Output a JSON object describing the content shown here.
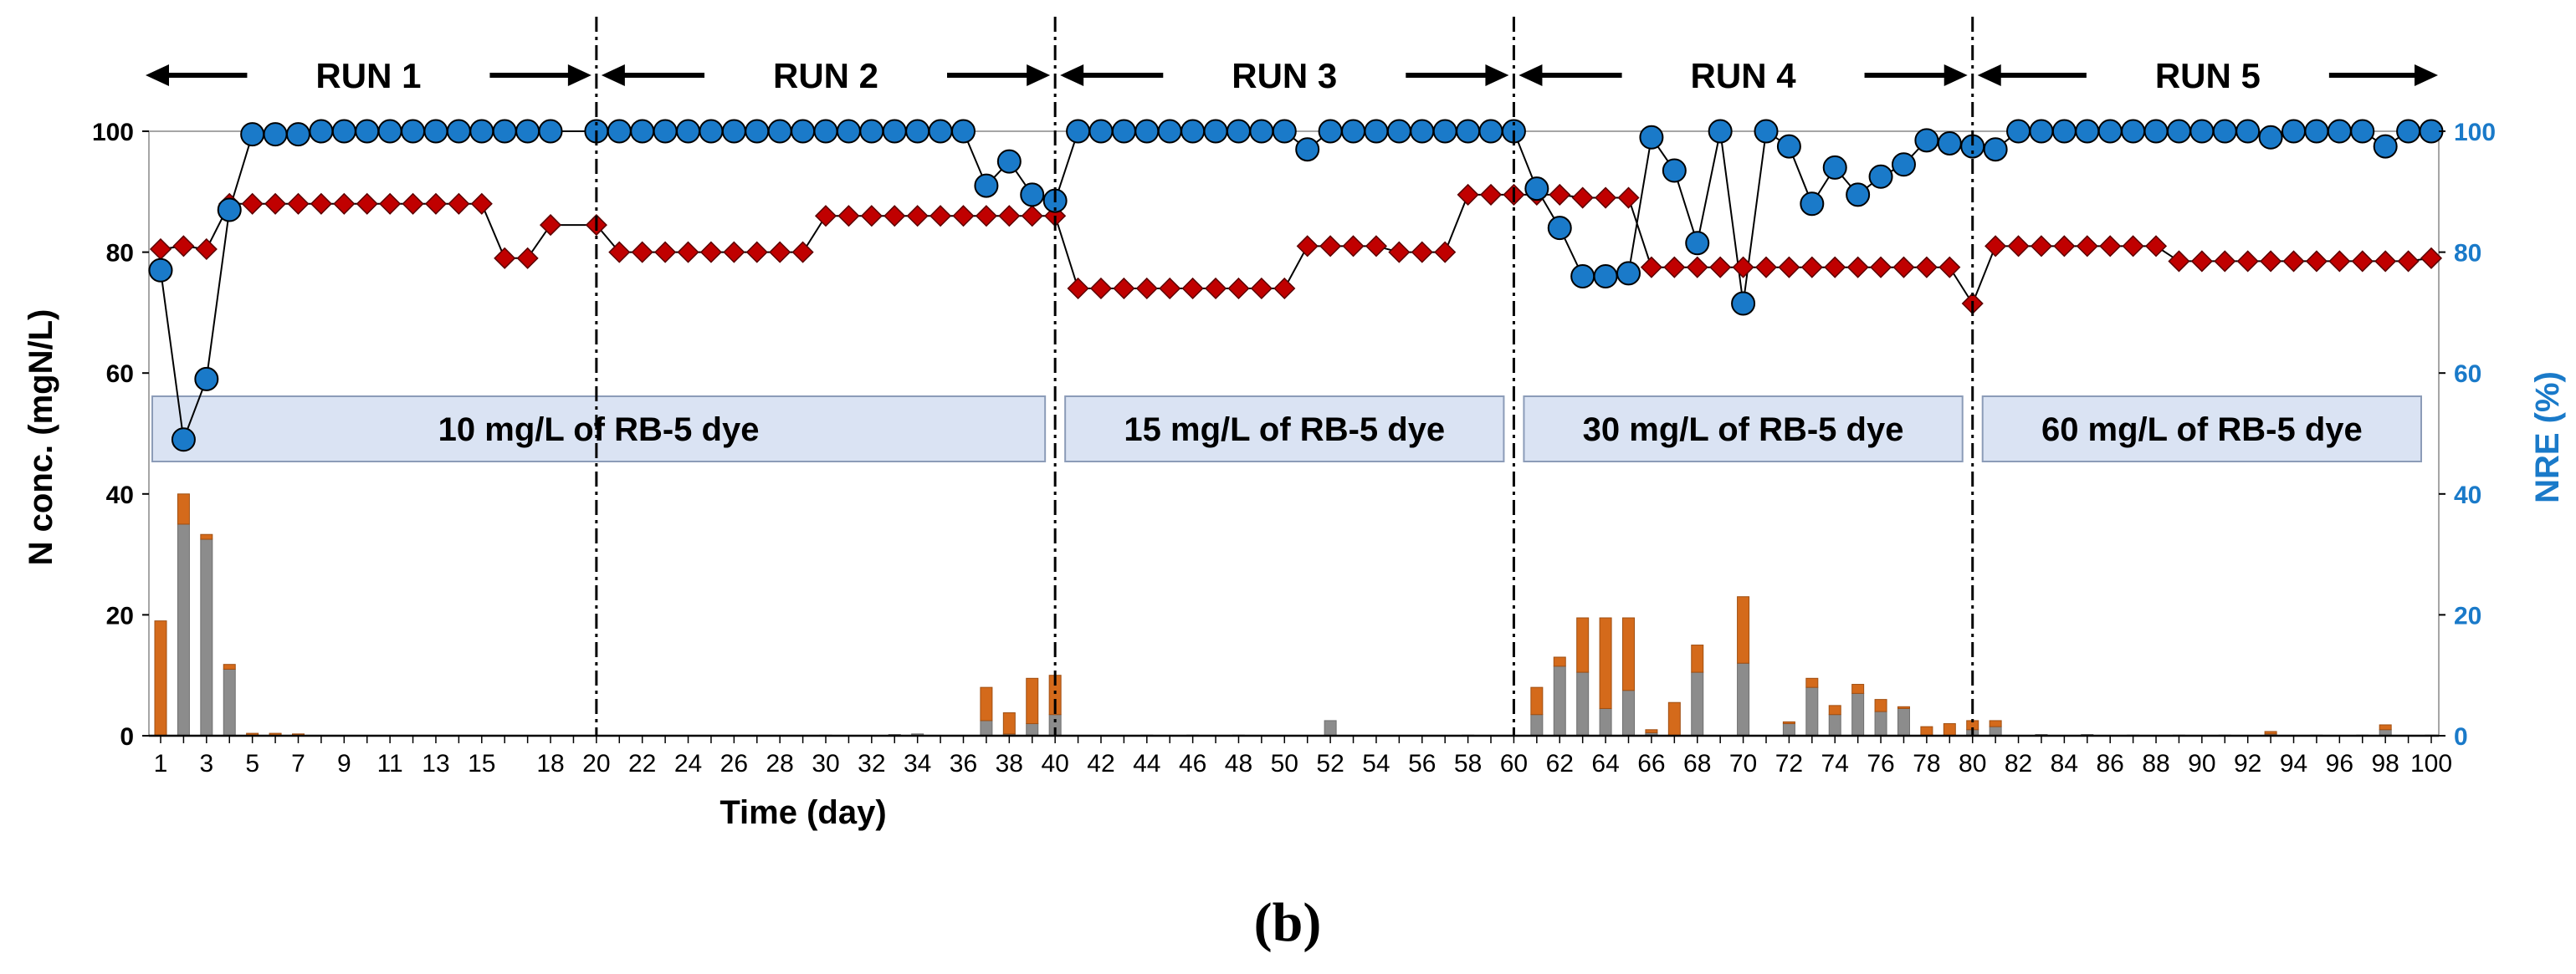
{
  "panel_label": "(b)",
  "chart_data": {
    "type": "bar+scatter",
    "title": "",
    "xlabel": "Time (day)",
    "ylabel_left": "N conc. (mgN/L)",
    "ylabel_right": "NRE (%)",
    "ylim_left": [
      0,
      100
    ],
    "ylim_right": [
      0,
      100
    ],
    "xlim": [
      1,
      100
    ],
    "left_ticks": [
      "0",
      "20",
      "40",
      "60",
      "80",
      "100"
    ],
    "right_ticks": [
      "0",
      "20",
      "40",
      "60",
      "80",
      "100"
    ],
    "x_tick_labels": [
      "1",
      "3",
      "5",
      "7",
      "9",
      "11",
      "13",
      "15",
      "18",
      "20",
      "22",
      "24",
      "26",
      "28",
      "30",
      "32",
      "34",
      "36",
      "38",
      "40",
      "42",
      "44",
      "46",
      "48",
      "50",
      "52",
      "54",
      "56",
      "58",
      "60",
      "62",
      "64",
      "66",
      "68",
      "70",
      "72",
      "74",
      "76",
      "78",
      "80",
      "82",
      "84",
      "86",
      "88",
      "90",
      "92",
      "94",
      "96",
      "98",
      "100"
    ],
    "x_tick_positions": [
      1,
      3,
      5,
      7,
      9,
      11,
      13,
      15,
      18,
      20,
      22,
      24,
      26,
      28,
      30,
      32,
      34,
      36,
      38,
      40,
      42,
      44,
      46,
      48,
      50,
      52,
      54,
      56,
      58,
      60,
      62,
      64,
      66,
      68,
      70,
      72,
      74,
      76,
      78,
      80,
      82,
      84,
      86,
      88,
      90,
      92,
      94,
      96,
      98,
      100
    ],
    "run_boundaries": [
      20,
      40,
      60,
      80
    ],
    "runs": [
      {
        "label": "RUN 1",
        "start": 1,
        "end": 20
      },
      {
        "label": "RUN 2",
        "start": 20,
        "end": 40
      },
      {
        "label": "RUN 3",
        "start": 40,
        "end": 60
      },
      {
        "label": "RUN 4",
        "start": 60,
        "end": 80
      },
      {
        "label": "RUN 5",
        "start": 80,
        "end": 100
      }
    ],
    "conditions": [
      {
        "label": "10 mg/L of RB-5 dye",
        "start": 1,
        "end": 40
      },
      {
        "label": "15 mg/L of RB-5 dye",
        "start": 40,
        "end": 60
      },
      {
        "label": "30 mg/L of RB-5 dye",
        "start": 60,
        "end": 80
      },
      {
        "label": "60 mg/L of RB-5 dye",
        "start": 80,
        "end": 100
      }
    ],
    "influent_n": {
      "color": "#c00000",
      "points": [
        [
          1,
          80.5
        ],
        [
          2,
          81
        ],
        [
          3,
          80.5
        ],
        [
          4,
          88
        ],
        [
          5,
          88
        ],
        [
          6,
          88
        ],
        [
          7,
          88
        ],
        [
          8,
          88
        ],
        [
          9,
          88
        ],
        [
          10,
          88
        ],
        [
          11,
          88
        ],
        [
          12,
          88
        ],
        [
          13,
          88
        ],
        [
          14,
          88
        ],
        [
          15,
          88
        ],
        [
          16,
          79
        ],
        [
          17,
          79
        ],
        [
          18,
          84.5
        ],
        [
          20,
          84.5
        ],
        [
          21,
          80
        ],
        [
          22,
          80
        ],
        [
          23,
          80
        ],
        [
          24,
          80
        ],
        [
          25,
          80
        ],
        [
          26,
          80
        ],
        [
          27,
          80
        ],
        [
          28,
          80
        ],
        [
          29,
          80
        ],
        [
          30,
          86
        ],
        [
          31,
          86
        ],
        [
          32,
          86
        ],
        [
          33,
          86
        ],
        [
          34,
          86
        ],
        [
          35,
          86
        ],
        [
          36,
          86
        ],
        [
          37,
          86
        ],
        [
          38,
          86
        ],
        [
          39,
          86
        ],
        [
          40,
          86
        ],
        [
          41,
          74
        ],
        [
          42,
          74
        ],
        [
          43,
          74
        ],
        [
          44,
          74
        ],
        [
          45,
          74
        ],
        [
          46,
          74
        ],
        [
          47,
          74
        ],
        [
          48,
          74
        ],
        [
          49,
          74
        ],
        [
          50,
          74
        ],
        [
          51,
          81
        ],
        [
          52,
          81
        ],
        [
          53,
          81
        ],
        [
          54,
          81
        ],
        [
          55,
          80
        ],
        [
          56,
          80
        ],
        [
          57,
          80
        ],
        [
          58,
          89.5
        ],
        [
          59,
          89.5
        ],
        [
          60,
          89.5
        ],
        [
          61,
          89.5
        ],
        [
          62,
          89.5
        ],
        [
          63,
          89
        ],
        [
          64,
          89
        ],
        [
          65,
          89
        ],
        [
          66,
          77.5
        ],
        [
          67,
          77.5
        ],
        [
          68,
          77.5
        ],
        [
          69,
          77.5
        ],
        [
          70,
          77.5
        ],
        [
          71,
          77.5
        ],
        [
          72,
          77.5
        ],
        [
          73,
          77.5
        ],
        [
          74,
          77.5
        ],
        [
          75,
          77.5
        ],
        [
          76,
          77.5
        ],
        [
          77,
          77.5
        ],
        [
          78,
          77.5
        ],
        [
          79,
          77.5
        ],
        [
          80,
          71.5
        ],
        [
          81,
          81
        ],
        [
          82,
          81
        ],
        [
          83,
          81
        ],
        [
          84,
          81
        ],
        [
          85,
          81
        ],
        [
          86,
          81
        ],
        [
          87,
          81
        ],
        [
          88,
          81
        ],
        [
          89,
          78.5
        ],
        [
          90,
          78.5
        ],
        [
          91,
          78.5
        ],
        [
          92,
          78.5
        ],
        [
          93,
          78.5
        ],
        [
          94,
          78.5
        ],
        [
          95,
          78.5
        ],
        [
          96,
          78.5
        ],
        [
          97,
          78.5
        ],
        [
          98,
          78.5
        ],
        [
          99,
          78.5
        ],
        [
          100,
          79
        ]
      ]
    },
    "nre": {
      "name": "NRE (%)",
      "color": "#1a7ac9",
      "points": [
        [
          1,
          77
        ],
        [
          2,
          49
        ],
        [
          3,
          59
        ],
        [
          4,
          87
        ],
        [
          5,
          99.5
        ],
        [
          6,
          99.5
        ],
        [
          7,
          99.5
        ],
        [
          8,
          100
        ],
        [
          9,
          100
        ],
        [
          10,
          100
        ],
        [
          11,
          100
        ],
        [
          12,
          100
        ],
        [
          13,
          100
        ],
        [
          14,
          100
        ],
        [
          15,
          100
        ],
        [
          16,
          100
        ],
        [
          17,
          100
        ],
        [
          18,
          100
        ],
        [
          20,
          100
        ],
        [
          21,
          100
        ],
        [
          22,
          100
        ],
        [
          23,
          100
        ],
        [
          24,
          100
        ],
        [
          25,
          100
        ],
        [
          26,
          100
        ],
        [
          27,
          100
        ],
        [
          28,
          100
        ],
        [
          29,
          100
        ],
        [
          30,
          100
        ],
        [
          31,
          100
        ],
        [
          32,
          100
        ],
        [
          33,
          100
        ],
        [
          34,
          100
        ],
        [
          35,
          100
        ],
        [
          36,
          100
        ],
        [
          37,
          91
        ],
        [
          38,
          95
        ],
        [
          39,
          89.5
        ],
        [
          40,
          88.5
        ],
        [
          41,
          100
        ],
        [
          42,
          100
        ],
        [
          43,
          100
        ],
        [
          44,
          100
        ],
        [
          45,
          100
        ],
        [
          46,
          100
        ],
        [
          47,
          100
        ],
        [
          48,
          100
        ],
        [
          49,
          100
        ],
        [
          50,
          100
        ],
        [
          51,
          97
        ],
        [
          52,
          100
        ],
        [
          53,
          100
        ],
        [
          54,
          100
        ],
        [
          55,
          100
        ],
        [
          56,
          100
        ],
        [
          57,
          100
        ],
        [
          58,
          100
        ],
        [
          59,
          100
        ],
        [
          60,
          100
        ],
        [
          61,
          90.5
        ],
        [
          62,
          84
        ],
        [
          63,
          76
        ],
        [
          64,
          76
        ],
        [
          65,
          76.5
        ],
        [
          66,
          99
        ],
        [
          67,
          93.5
        ],
        [
          68,
          81.5
        ],
        [
          69,
          100
        ],
        [
          70,
          71.5
        ],
        [
          71,
          100
        ],
        [
          72,
          97.5
        ],
        [
          73,
          88
        ],
        [
          74,
          94
        ],
        [
          75,
          89.5
        ],
        [
          76,
          92.5
        ],
        [
          77,
          94.5
        ],
        [
          78,
          98.5
        ],
        [
          79,
          98
        ],
        [
          80,
          97.5
        ],
        [
          81,
          97
        ],
        [
          82,
          100
        ],
        [
          83,
          100
        ],
        [
          84,
          100
        ],
        [
          85,
          100
        ],
        [
          86,
          100
        ],
        [
          87,
          100
        ],
        [
          88,
          100
        ],
        [
          89,
          100
        ],
        [
          90,
          100
        ],
        [
          91,
          100
        ],
        [
          92,
          100
        ],
        [
          93,
          99
        ],
        [
          94,
          100
        ],
        [
          95,
          100
        ],
        [
          96,
          100
        ],
        [
          97,
          100
        ],
        [
          98,
          97.5
        ],
        [
          99,
          100
        ],
        [
          100,
          100
        ]
      ]
    },
    "effluent_bars": {
      "gray_color": "#8c8c8c",
      "orange_color": "#d46a1b",
      "points": [
        [
          1,
          0,
          19
        ],
        [
          2,
          35,
          5
        ],
        [
          3,
          32.5,
          0.8
        ],
        [
          4,
          11,
          0.8
        ],
        [
          5,
          0,
          0.4
        ],
        [
          6,
          0,
          0.4
        ],
        [
          7,
          0,
          0.3
        ],
        [
          30,
          0.1,
          0
        ],
        [
          33,
          0.2,
          0
        ],
        [
          34,
          0.3,
          0
        ],
        [
          37,
          2.5,
          5.5
        ],
        [
          38,
          0.3,
          3.5
        ],
        [
          39,
          2,
          7.5
        ],
        [
          40,
          3.5,
          6.5
        ],
        [
          44,
          0.1,
          0
        ],
        [
          46,
          0.1,
          0
        ],
        [
          48,
          0.1,
          0
        ],
        [
          52,
          2.5,
          0
        ],
        [
          58,
          0.1,
          0
        ],
        [
          61,
          3.5,
          4.5
        ],
        [
          62,
          11.5,
          1.5
        ],
        [
          63,
          10.5,
          9
        ],
        [
          64,
          4.5,
          15
        ],
        [
          65,
          7.5,
          12
        ],
        [
          66,
          0.5,
          0.5
        ],
        [
          67,
          0,
          5.5
        ],
        [
          68,
          10.5,
          4.5
        ],
        [
          70,
          12,
          11
        ],
        [
          72,
          2,
          0.3
        ],
        [
          73,
          8,
          1.5
        ],
        [
          74,
          3.5,
          1.5
        ],
        [
          75,
          7,
          1.5
        ],
        [
          76,
          4,
          2
        ],
        [
          77,
          4.5,
          0.3
        ],
        [
          78,
          0,
          1.5
        ],
        [
          79,
          0,
          2
        ],
        [
          80,
          1,
          1.5
        ],
        [
          81,
          1.5,
          1
        ],
        [
          83,
          0.2,
          0
        ],
        [
          85,
          0.2,
          0
        ],
        [
          87,
          0.1,
          0
        ],
        [
          89,
          0.1,
          0
        ],
        [
          91,
          0.1,
          0
        ],
        [
          93,
          0.3,
          0.4
        ],
        [
          95,
          0.1,
          0
        ],
        [
          97,
          0.1,
          0
        ],
        [
          98,
          1,
          0.8
        ],
        [
          100,
          0.1,
          0
        ]
      ]
    }
  }
}
